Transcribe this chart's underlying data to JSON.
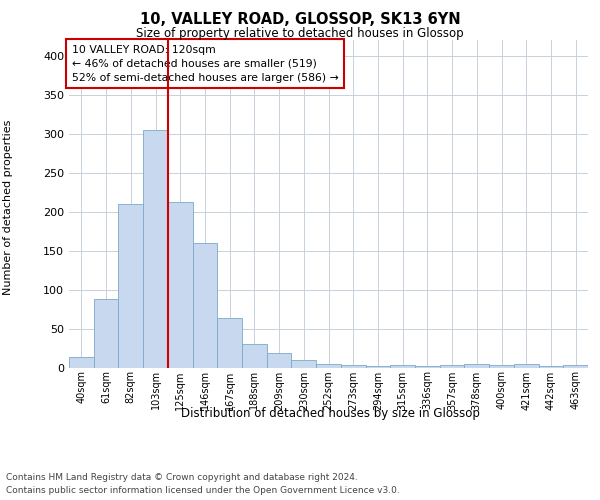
{
  "title": "10, VALLEY ROAD, GLOSSOP, SK13 6YN",
  "subtitle": "Size of property relative to detached houses in Glossop",
  "xlabel": "Distribution of detached houses by size in Glossop",
  "ylabel": "Number of detached properties",
  "bar_color": "#c8d8ee",
  "bar_edge_color": "#7aaaca",
  "grid_color": "#c8d0dc",
  "background_color": "#ffffff",
  "vline_color": "#cc0000",
  "annotation_text": "10 VALLEY ROAD: 120sqm\n← 46% of detached houses are smaller (519)\n52% of semi-detached houses are larger (586) →",
  "annotation_box_color": "#ffffff",
  "annotation_box_edge": "#cc0000",
  "categories": [
    "40sqm",
    "61sqm",
    "82sqm",
    "103sqm",
    "125sqm",
    "146sqm",
    "167sqm",
    "188sqm",
    "209sqm",
    "230sqm",
    "252sqm",
    "273sqm",
    "294sqm",
    "315sqm",
    "336sqm",
    "357sqm",
    "378sqm",
    "400sqm",
    "421sqm",
    "442sqm",
    "463sqm"
  ],
  "values": [
    14,
    88,
    210,
    305,
    212,
    160,
    64,
    30,
    19,
    9,
    5,
    3,
    2,
    3,
    2,
    3,
    4,
    3,
    4,
    2,
    3
  ],
  "ylim": [
    0,
    420
  ],
  "yticks": [
    0,
    50,
    100,
    150,
    200,
    250,
    300,
    350,
    400
  ],
  "footer_line1": "Contains HM Land Registry data © Crown copyright and database right 2024.",
  "footer_line2": "Contains public sector information licensed under the Open Government Licence v3.0."
}
